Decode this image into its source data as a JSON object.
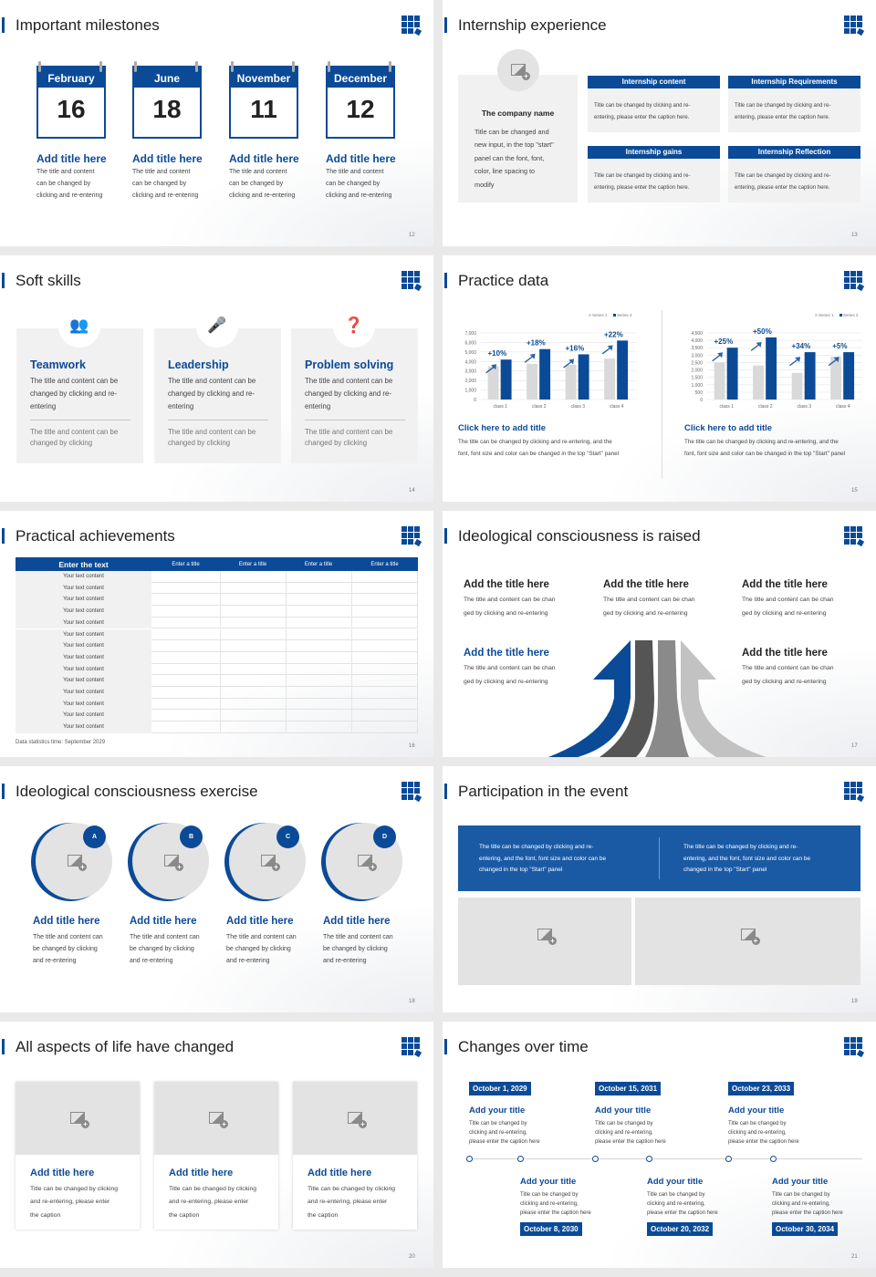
{
  "accent": "#0b4a97",
  "slides": [
    {
      "title": "Important milestones",
      "page": "12",
      "calendars": [
        {
          "month": "February",
          "day": "16"
        },
        {
          "month": "June",
          "day": "18"
        },
        {
          "month": "November",
          "day": "11"
        },
        {
          "month": "December",
          "day": "12"
        }
      ],
      "items": [
        {
          "title": "Add title here",
          "text": [
            "The title and content",
            "can be changed by",
            "clicking and re-entering"
          ]
        },
        {
          "title": "Add title here",
          "text": [
            "The title and content",
            "can be changed by",
            "clicking and re-entering"
          ]
        },
        {
          "title": "Add title here",
          "text": [
            "The title and content",
            "can be changed by",
            "clicking and re-entering"
          ]
        },
        {
          "title": "Add title here",
          "text": [
            "The title and content",
            "can be changed by",
            "clicking and re-entering"
          ]
        }
      ]
    },
    {
      "title": "Internship experience",
      "page": "13",
      "company": {
        "name": "The company name",
        "text": [
          "Title can be changed and",
          "new input, in the top \"start\"",
          "panel can the font, font,",
          "color, line spacing to",
          "modify"
        ]
      },
      "boxes": [
        {
          "header": "Internship content",
          "text": [
            "Title can be changed by clicking and re-",
            "entering, please enter the caption here."
          ]
        },
        {
          "header": "Internship Requirements",
          "text": [
            "Title can be changed by clicking and re-",
            "entering, please enter the caption here."
          ]
        },
        {
          "header": "Internship gains",
          "text": [
            "Title can be changed by clicking and re-",
            "entering, please enter the caption here."
          ]
        },
        {
          "header": "Internship Reflection",
          "text": [
            "Title can be changed by clicking and re-",
            "entering, please enter the caption here."
          ]
        }
      ]
    },
    {
      "title": "Soft skills",
      "page": "14",
      "cards": [
        {
          "icon": "team-star-icon",
          "title": "Teamwork",
          "text": [
            "The title and content can be",
            "changed by clicking and re-",
            "entering"
          ],
          "sub": [
            "The title and content can be",
            "changed by clicking"
          ]
        },
        {
          "icon": "speaker-podium-icon",
          "title": "Leadership",
          "text": [
            "The title and content can be",
            "changed by clicking and re-",
            "entering"
          ],
          "sub": [
            "The title and content can be",
            "changed by clicking"
          ]
        },
        {
          "icon": "person-question-icon",
          "title": "Problem solving",
          "text": [
            "The title and content can be",
            "changed by clicking and re-",
            "entering"
          ],
          "sub": [
            "The title and content can be",
            "changed by clicking"
          ]
        }
      ]
    },
    {
      "title": "Practice data",
      "page": "15",
      "captions": [
        {
          "title": "Click here to add title",
          "text": [
            "The title can be changed by clicking and re-entering, and the",
            "font, font size and color can be changed in the top \"Start\" panel"
          ]
        },
        {
          "title": "Click here to add title",
          "text": [
            "The title can be changed by clicking and re-entering, and the",
            "font, font size and color can be changed in the top \"Start\" panel"
          ]
        }
      ]
    },
    {
      "title": "Practical achievements",
      "page": "16",
      "table": {
        "headers": [
          "Enter the text",
          "Enter a title",
          "Enter a title",
          "Enter a title",
          "Enter a title"
        ],
        "rows": [
          "Your text content",
          "Your text content",
          "Your text content",
          "Your text content",
          "Your text content",
          "Your text content",
          "Your text content",
          "Your text content",
          "Your text content",
          "Your text content",
          "Your text content",
          "Your text content",
          "Your text content",
          "Your text content"
        ]
      },
      "note": "Data statistics time: September 2029"
    },
    {
      "title": "Ideological consciousness is raised",
      "page": "17",
      "blocks": [
        {
          "title": "Add the title here",
          "text": [
            "The title and content can be chan",
            "ged by clicking and re-entering"
          ]
        },
        {
          "title": "Add the title here",
          "text": [
            "The title and content can be chan",
            "ged by clicking and re-entering"
          ]
        },
        {
          "title": "Add the title here",
          "text": [
            "The title and content can be chan",
            "ged by clicking and re-entering"
          ]
        },
        {
          "title": "Add the title here",
          "text": [
            "The title and content can be chan",
            "ged by clicking and re-entering"
          ]
        },
        {
          "title": "Add the title here",
          "text": [
            "The title and content can be chan",
            "ged by clicking and re-entering"
          ]
        }
      ]
    },
    {
      "title": "Ideological consciousness exercise",
      "page": "18",
      "items": [
        {
          "badge": "A",
          "title": "Add title here",
          "text": [
            "The title and content can",
            "be changed by clicking",
            "and re-entering"
          ]
        },
        {
          "badge": "B",
          "title": "Add title here",
          "text": [
            "The title and content can",
            "be changed by clicking",
            "and re-entering"
          ]
        },
        {
          "badge": "C",
          "title": "Add title here",
          "text": [
            "The title and content can",
            "be changed by clicking",
            "and re-entering"
          ]
        },
        {
          "badge": "D",
          "title": "Add title here",
          "text": [
            "The title and content can",
            "be changed by clicking",
            "and re-entering"
          ]
        }
      ]
    },
    {
      "title": "Participation in the event",
      "page": "19",
      "banner": [
        [
          "The title can be changed by clicking and re-",
          "entering, and the font, font size and color can be",
          "changed in the top \"Start\" panel"
        ],
        [
          "The title can be changed by clicking and re-",
          "entering, and the font, font size and color can be",
          "changed in the top \"Start\" panel"
        ]
      ]
    },
    {
      "title": "All aspects of life have changed",
      "page": "20",
      "cards": [
        {
          "title": "Add title here",
          "text": [
            "Title can be changed by clicking",
            "and re-entering, please enter",
            "the caption"
          ]
        },
        {
          "title": "Add title here",
          "text": [
            "Title can be changed by clicking",
            "and re-entering, please enter",
            "the caption"
          ]
        },
        {
          "title": "Add title here",
          "text": [
            "Title can be changed by clicking",
            "and re-entering, please enter",
            "the caption"
          ]
        }
      ]
    },
    {
      "title": "Changes over time",
      "page": "21",
      "events": [
        {
          "date": "October 1, 2029",
          "title": "Add your title",
          "text": [
            "Title can be changed by",
            "clicking and re-entering,",
            "please enter the caption here"
          ]
        },
        {
          "date": "October 8, 2030",
          "title": "Add your title",
          "text": [
            "Title can be changed by",
            "clicking and re-entering,",
            "please enter the caption here"
          ]
        },
        {
          "date": "October 15, 2031",
          "title": "Add your title",
          "text": [
            "Title can be changed by",
            "clicking and re-entering,",
            "please enter the caption here"
          ]
        },
        {
          "date": "October 20, 2032",
          "title": "Add your title",
          "text": [
            "Title can be changed by",
            "clicking and re-entering,",
            "please enter the caption here"
          ]
        },
        {
          "date": "October 23, 2033",
          "title": "Add your title",
          "text": [
            "Title can be changed by",
            "clicking and re-entering,",
            "please enter the caption here"
          ]
        },
        {
          "date": "October 30, 2034",
          "title": "Add your title",
          "text": [
            "Title can be changed by",
            "clicking and re-entering,",
            "please enter the caption here"
          ]
        }
      ]
    }
  ],
  "chart_data": [
    {
      "type": "bar",
      "categories": [
        "class 1",
        "class 2",
        "class 3",
        "class 4"
      ],
      "series": [
        {
          "name": "Series 1",
          "values": [
            3500,
            3750,
            3650,
            4300
          ],
          "color": "#d9d9d9"
        },
        {
          "name": "Series 2",
          "values": [
            4200,
            5300,
            4750,
            6200
          ],
          "color": "#0b4a97"
        }
      ],
      "annotations": [
        "+10%",
        "+18%",
        "+16%",
        "+22%"
      ],
      "ylim": [
        0,
        7000
      ],
      "yticks": [
        "0",
        "1,000",
        "2,000",
        "3,000",
        "4,000",
        "5,000",
        "6,000",
        "7,000"
      ],
      "grid": true,
      "legend": "top-right"
    },
    {
      "type": "bar",
      "categories": [
        "class 1",
        "class 2",
        "class 3",
        "class 4"
      ],
      "series": [
        {
          "name": "Series 1",
          "values": [
            2500,
            2300,
            1800,
            2900
          ],
          "color": "#d9d9d9"
        },
        {
          "name": "Series 2",
          "values": [
            3500,
            4200,
            3200,
            3200
          ],
          "color": "#0b4a97"
        }
      ],
      "annotations": [
        "+25%",
        "+50%",
        "+34%",
        "+5%"
      ],
      "ylim": [
        0,
        4500
      ],
      "yticks": [
        "0",
        "500",
        "1,000",
        "1,500",
        "2,000",
        "2,500",
        "3,000",
        "3,500",
        "4,000",
        "4,500"
      ],
      "grid": true,
      "legend": "top-right"
    }
  ]
}
